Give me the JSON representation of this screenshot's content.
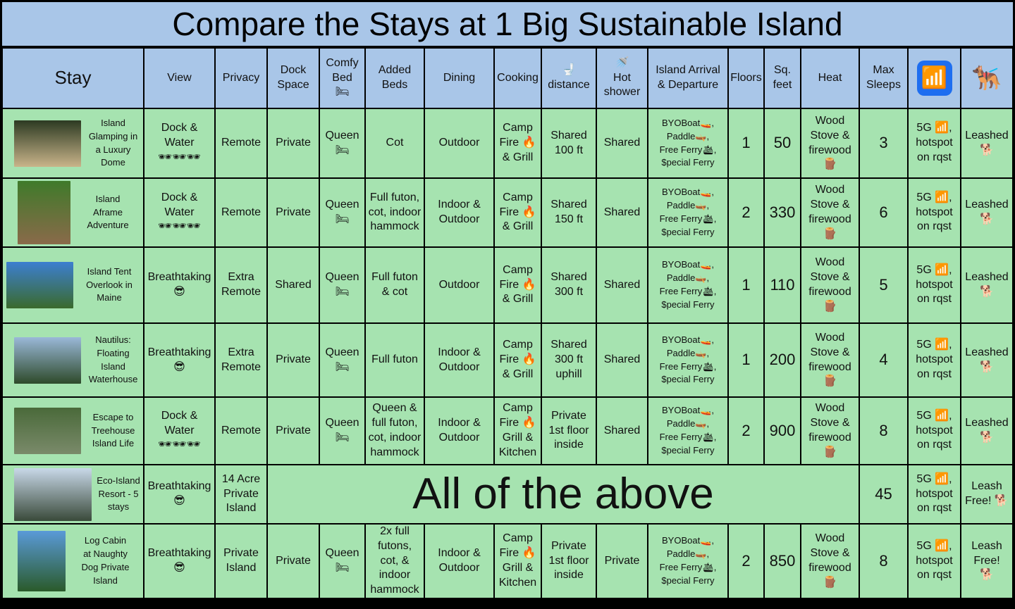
{
  "title": "Compare the Stays at 1 Big Sustainable Island",
  "headers": [
    "Stay",
    "View",
    "Privacy",
    "Dock\nSpace",
    "Comfy\nBed\n🛏",
    "Added\nBeds",
    "Dining",
    "Cooking",
    "🚽\ndistance",
    "🚿\nHot\nshower",
    "Island Arrival\n& Departure",
    "Floors",
    "Sq.\nfeet",
    "Heat",
    "Max\nSleeps",
    "wifi-icon",
    "dog-icon"
  ],
  "header_icons": {
    "wifi": "📶",
    "dog": "🐕‍🦺"
  },
  "rows": [
    {
      "name": "Island\nGlamping in\na Luxury\nDome",
      "thumb": [
        "#2c3a22",
        "#c9b48a"
      ],
      "cells": [
        "Dock &\nWater\n🕶🕶🕶",
        "Remote",
        "Private",
        "Queen\n🛏",
        "Cot",
        "Outdoor",
        "Camp\nFire 🔥\n& Grill",
        "Shared\n100 ft",
        "Shared",
        "BYOBoat🚤,\nPaddle🛶,\nFree Ferry🛳,\n$pecial Ferry",
        "1",
        "50",
        "Wood\nStove &\nfirewood\n🪵",
        "3",
        "5G 📶,\nhotspot\non rqst",
        "Leashed\n🐕"
      ]
    },
    {
      "name": "Island\nAframe\nAdventure",
      "thumb": [
        "#3f7a2a",
        "#8a6a4a"
      ],
      "cells": [
        "Dock &\nWater\n🕶🕶🕶",
        "Remote",
        "Private",
        "Queen\n🛏",
        "Full futon,\ncot, indoor\nhammock",
        "Indoor &\nOutdoor",
        "Camp\nFire 🔥\n& Grill",
        "Shared\n150 ft",
        "Shared",
        "BYOBoat🚤,\nPaddle🛶,\nFree Ferry🛳,\n$pecial Ferry",
        "2",
        "330",
        "Wood\nStove &\nfirewood\n🪵",
        "6",
        "5G 📶,\nhotspot\non rqst",
        "Leashed\n🐕"
      ]
    },
    {
      "name": "Island Tent\nOverlook in\nMaine",
      "thumb": [
        "#3d7fd0",
        "#3a6a2c"
      ],
      "cells": [
        "Breathtaking\n😎",
        "Extra\nRemote",
        "Shared",
        "Queen\n🛏",
        "Full futon\n& cot",
        "Outdoor",
        "Camp\nFire 🔥\n& Grill",
        "Shared\n300 ft",
        "Shared",
        "BYOBoat🚤,\nPaddle🛶,\nFree Ferry🛳,\n$pecial Ferry",
        "1",
        "110",
        "Wood\nStove &\nfirewood\n🪵",
        "5",
        "5G 📶,\nhotspot\non rqst",
        "Leashed\n🐕"
      ]
    },
    {
      "name": "Nautilus:\nFloating\nIsland\nWaterhouse",
      "thumb": [
        "#9ab8d8",
        "#2e4a2a"
      ],
      "cells": [
        "Breathtaking\n😎",
        "Extra\nRemote",
        "Private",
        "Queen\n🛏",
        "Full futon",
        "Indoor &\nOutdoor",
        "Camp\nFire 🔥\n& Grill",
        "Shared\n300 ft\nuphill",
        "Shared",
        "BYOBoat🚤,\nPaddle🛶,\nFree Ferry🛳,\n$pecial Ferry",
        "1",
        "200",
        "Wood\nStove &\nfirewood\n🪵",
        "4",
        "5G 📶,\nhotspot\non rqst",
        "Leashed\n🐕"
      ]
    },
    {
      "name": "Escape to\nTreehouse\nIsland Life",
      "thumb": [
        "#4a6a3a",
        "#7a8a6a"
      ],
      "cells": [
        "Dock &\nWater\n🕶🕶🕶",
        "Remote",
        "Private",
        "Queen\n🛏",
        "Queen &\nfull futon,\ncot, indoor\nhammock",
        "Indoor &\nOutdoor",
        "Camp\nFire 🔥\nGrill &\nKitchen",
        "Private\n1st floor\ninside",
        "Shared",
        "BYOBoat🚤,\nPaddle🛶,\nFree Ferry🛳,\n$pecial Ferry",
        "2",
        "900",
        "Wood\nStove &\nfirewood\n🪵",
        "8",
        "5G 📶,\nhotspot\non rqst",
        "Leashed\n🐕"
      ]
    },
    {
      "name": "Eco-Island\nResort - 5\nstays",
      "thumb": [
        "#c8d8e8",
        "#3a4a3a"
      ],
      "view": "Breathtaking\n😎",
      "privacy": "14 Acre\nPrivate\nIsland",
      "all": "All of the above",
      "max": "45",
      "wifi": "5G 📶,\nhotspot\non rqst",
      "dog": "Leash\nFree! 🐕"
    },
    {
      "name": "Log Cabin\nat Naughty\nDog Private\nIsland",
      "thumb": [
        "#5a9ad8",
        "#2a5a2a"
      ],
      "cells": [
        "Breathtaking\n😎",
        "Private\nIsland",
        "Private",
        "Queen\n🛏",
        "2x full\nfutons,\ncot, &\nindoor\nhammock",
        "Indoor &\nOutdoor",
        "Camp\nFire 🔥\nGrill &\nKitchen",
        "Private\n1st floor\ninside",
        "Private",
        "BYOBoat🚤,\nPaddle🛶,\nFree Ferry🛳,\n$pecial Ferry",
        "2",
        "850",
        "Wood\nStove &\nfirewood\n🪵",
        "8",
        "5G 📶,\nhotspot\non rqst",
        "Leash\nFree!\n🐕"
      ]
    }
  ]
}
